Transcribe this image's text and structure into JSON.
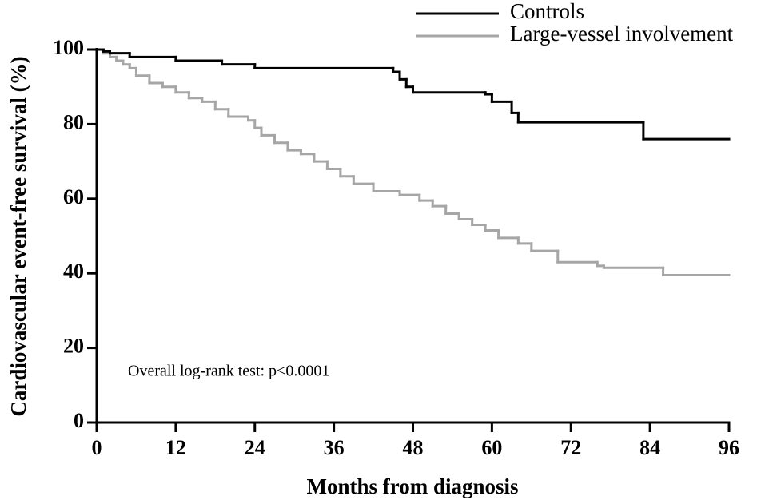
{
  "chart_data": {
    "type": "line",
    "step": true,
    "x_label": "Months from diagnosis",
    "y_label": "Cardiovascular event-free survival (%)",
    "annotation": "Overall log-rank test: p<0.0001",
    "xlim": [
      0,
      96
    ],
    "xticks": [
      0,
      12,
      24,
      36,
      48,
      60,
      72,
      84,
      96
    ],
    "ylim": [
      0,
      100
    ],
    "yticks": [
      0,
      20,
      40,
      60,
      80,
      100
    ],
    "legend": "top-right",
    "series": [
      {
        "name": "Controls",
        "color": "#000000",
        "x": [
          0,
          1,
          2,
          5,
          12,
          19,
          24,
          45,
          46,
          47,
          48,
          59,
          60,
          63,
          64,
          83,
          96
        ],
        "values": [
          100,
          99.5,
          99,
          98,
          97,
          96,
          95,
          94,
          92,
          90,
          88.5,
          88,
          86,
          83,
          80.5,
          76,
          76
        ]
      },
      {
        "name": "Large-vessel involvement",
        "color": "#a6a6a6",
        "x": [
          0,
          1,
          2,
          3,
          4,
          5,
          6,
          8,
          10,
          12,
          14,
          16,
          18,
          20,
          23,
          24,
          25,
          27,
          29,
          31,
          33,
          35,
          37,
          39,
          42,
          46,
          49,
          51,
          53,
          55,
          57,
          59,
          61,
          64,
          66,
          70,
          76,
          77,
          86,
          96
        ],
        "values": [
          100,
          99,
          98,
          97,
          96,
          95,
          93,
          91,
          90,
          88.5,
          87,
          86,
          84,
          82,
          81,
          79,
          77,
          75,
          73,
          72,
          70,
          68,
          66,
          64,
          62,
          61,
          59.5,
          58,
          56,
          54.5,
          53,
          51.5,
          49.5,
          48,
          46,
          43,
          42,
          41.5,
          39.5,
          39.5
        ]
      }
    ]
  }
}
